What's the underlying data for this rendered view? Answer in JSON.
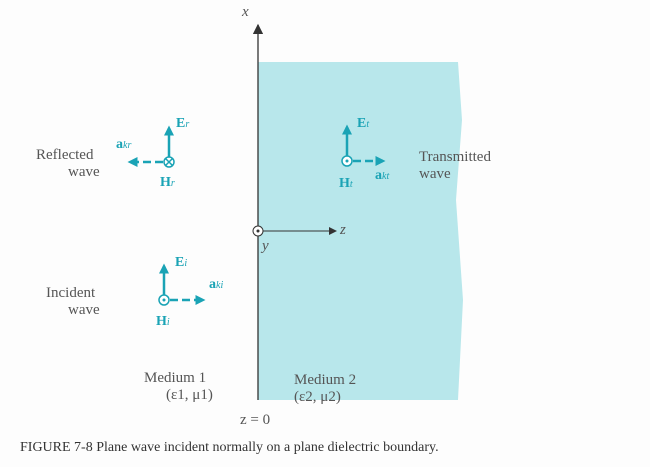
{
  "labels": {
    "x_axis": "x",
    "z_axis": "z",
    "y_axis": "y",
    "reflected": "Reflected",
    "reflected2": "wave",
    "incident": "Incident",
    "incident2": "wave",
    "transmitted": "Transmitted",
    "transmitted2": "wave",
    "medium1": "Medium 1",
    "medium1_params": "(ε1, μ1)",
    "medium2": "Medium 2",
    "medium2_params": "(ε2, μ2)",
    "boundary": "z = 0",
    "Er": "E",
    "Er_sub": "r",
    "Hr": "H",
    "Hr_sub": "r",
    "akr": "a",
    "akr_sub": "kr",
    "Et": "E",
    "Et_sub": "t",
    "Ht": "H",
    "Ht_sub": "t",
    "akt": "a",
    "akt_sub": "kt",
    "Ei": "E",
    "Ei_sub": "i",
    "Hi": "H",
    "Hi_sub": "i",
    "aki": "a",
    "aki_sub": "ki"
  },
  "caption": "FIGURE 7-8   Plane wave incident normally on a plane dielectric boundary.",
  "colors": {
    "vector": "#1aa3b5",
    "medium2": "#b8e7eb"
  }
}
